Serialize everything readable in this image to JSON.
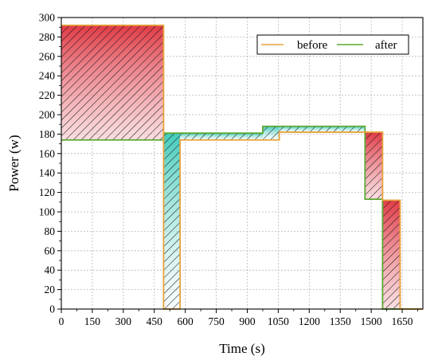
{
  "chart_data": {
    "type": "line",
    "title": "",
    "xlabel": "Time (s)",
    "ylabel": "Power (w)",
    "xlim": [
      0,
      1750
    ],
    "ylim": [
      0,
      300
    ],
    "xticks": [
      0,
      150,
      300,
      450,
      600,
      750,
      900,
      1050,
      1200,
      1350,
      1500,
      1650
    ],
    "yticks": [
      0,
      20,
      40,
      60,
      80,
      100,
      120,
      140,
      160,
      180,
      200,
      220,
      240,
      260,
      280,
      300
    ],
    "grid": true,
    "legend_position": "top-right",
    "series": [
      {
        "name": "before",
        "color": "#E8A33C",
        "points": [
          [
            0,
            292
          ],
          [
            495,
            292
          ],
          [
            495,
            0
          ],
          [
            575,
            0
          ],
          [
            575,
            174
          ],
          [
            1055,
            174
          ],
          [
            1055,
            182
          ],
          [
            1470,
            182
          ],
          [
            1470,
            182
          ],
          [
            1555,
            182
          ],
          [
            1555,
            112
          ],
          [
            1640,
            112
          ],
          [
            1640,
            0
          ],
          [
            1750,
            0
          ]
        ]
      },
      {
        "name": "after",
        "color": "#5CA832",
        "points": [
          [
            0,
            174
          ],
          [
            495,
            174
          ],
          [
            495,
            181
          ],
          [
            975,
            181
          ],
          [
            975,
            188
          ],
          [
            1470,
            188
          ],
          [
            1470,
            113
          ],
          [
            1555,
            113
          ],
          [
            1555,
            0
          ],
          [
            1750,
            0
          ]
        ]
      }
    ],
    "shaded_regions": [
      {
        "kind": "before-higher",
        "x0": 0,
        "x1": 495,
        "y0": 174,
        "y1": 292
      },
      {
        "kind": "after-higher",
        "x0": 495,
        "x1": 575,
        "y0": 0,
        "y1": 181
      },
      {
        "kind": "after-higher",
        "x0": 575,
        "x1": 975,
        "y0": 174,
        "y1": 181
      },
      {
        "kind": "after-higher",
        "x0": 975,
        "x1": 1055,
        "y0": 174,
        "y1": 188
      },
      {
        "kind": "after-higher",
        "x0": 1055,
        "x1": 1470,
        "y0": 182,
        "y1": 188
      },
      {
        "kind": "before-higher",
        "x0": 1470,
        "x1": 1555,
        "y0": 113,
        "y1": 182
      },
      {
        "kind": "before-higher",
        "x0": 1555,
        "x1": 1640,
        "y0": 0,
        "y1": 112
      }
    ],
    "colors": {
      "before_fill": "#E0303C",
      "after_fill": "#2EC6B4",
      "hatch": "#1a1a1a",
      "grid": "#b8b8b8",
      "axis": "#000000"
    }
  }
}
